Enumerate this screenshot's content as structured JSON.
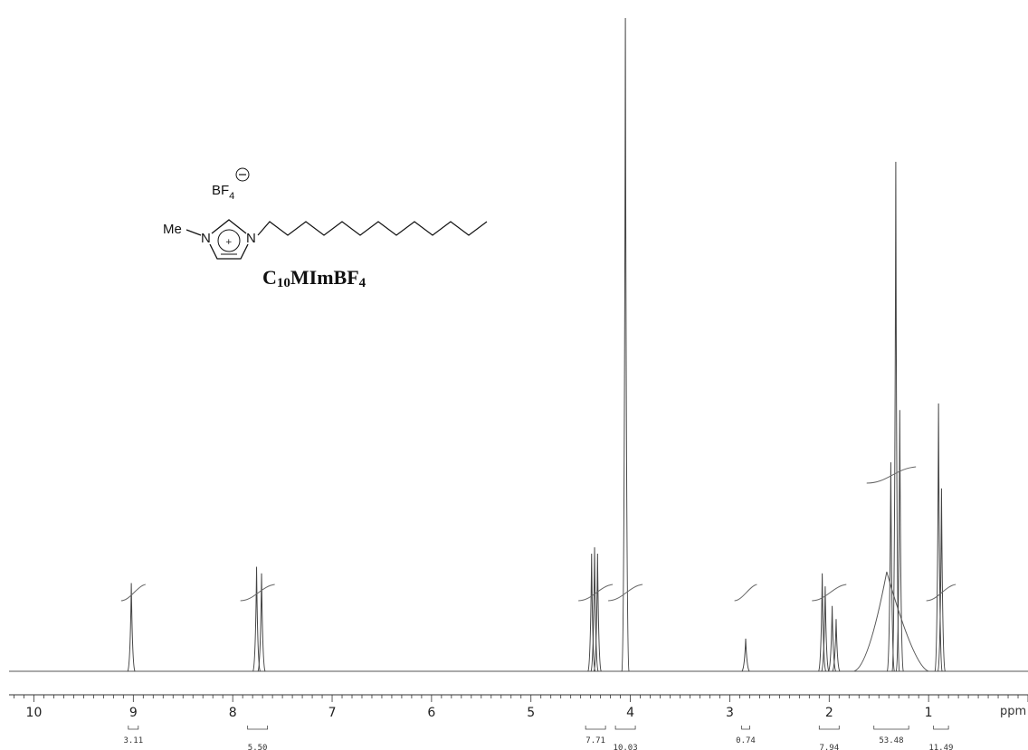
{
  "chart_data": {
    "type": "line",
    "title": "",
    "xlabel": "ppm",
    "ylabel": "",
    "x_reversed": true,
    "xlim": [
      10.25,
      0.0
    ],
    "x_ticks": [
      "10",
      "9",
      "8",
      "7",
      "6",
      "5",
      "4",
      "3",
      "2",
      "1"
    ],
    "peaks": [
      {
        "ppm": 9.02,
        "height": 0.135
      },
      {
        "ppm": 7.76,
        "height": 0.16
      },
      {
        "ppm": 7.71,
        "height": 0.15
      },
      {
        "ppm": 4.39,
        "height": 0.18
      },
      {
        "ppm": 4.36,
        "height": 0.19
      },
      {
        "ppm": 4.33,
        "height": 0.18
      },
      {
        "ppm": 4.05,
        "height": 1.0
      },
      {
        "ppm": 2.84,
        "height": 0.05
      },
      {
        "ppm": 2.07,
        "height": 0.15
      },
      {
        "ppm": 2.04,
        "height": 0.13
      },
      {
        "ppm": 1.97,
        "height": 0.1
      },
      {
        "ppm": 1.93,
        "height": 0.08
      },
      {
        "ppm": 1.38,
        "height": 0.32
      },
      {
        "ppm": 1.33,
        "height": 0.78
      },
      {
        "ppm": 1.29,
        "height": 0.4
      },
      {
        "ppm": 0.9,
        "height": 0.41
      },
      {
        "ppm": 0.87,
        "height": 0.28
      }
    ],
    "integrals": [
      {
        "from": 9.05,
        "to": 8.95,
        "value": "3.11"
      },
      {
        "from": 7.85,
        "to": 7.65,
        "value": "5.50"
      },
      {
        "from": 4.45,
        "to": 4.25,
        "value": "7.71"
      },
      {
        "from": 4.15,
        "to": 3.95,
        "value": "10.03"
      },
      {
        "from": 2.88,
        "to": 2.8,
        "value": "0.74"
      },
      {
        "from": 2.1,
        "to": 1.9,
        "value": "7.94"
      },
      {
        "from": 1.55,
        "to": 1.2,
        "value": "53.48"
      },
      {
        "from": 0.95,
        "to": 0.8,
        "value": "11.49"
      }
    ]
  },
  "structure": {
    "anion": "BF",
    "anion_sub": "4",
    "methyl": "Me",
    "n1": "N",
    "n3": "N",
    "charge": "+",
    "name_main": "C",
    "name_sub1": "10",
    "name_rest": "MImBF",
    "name_sub2": "4"
  }
}
